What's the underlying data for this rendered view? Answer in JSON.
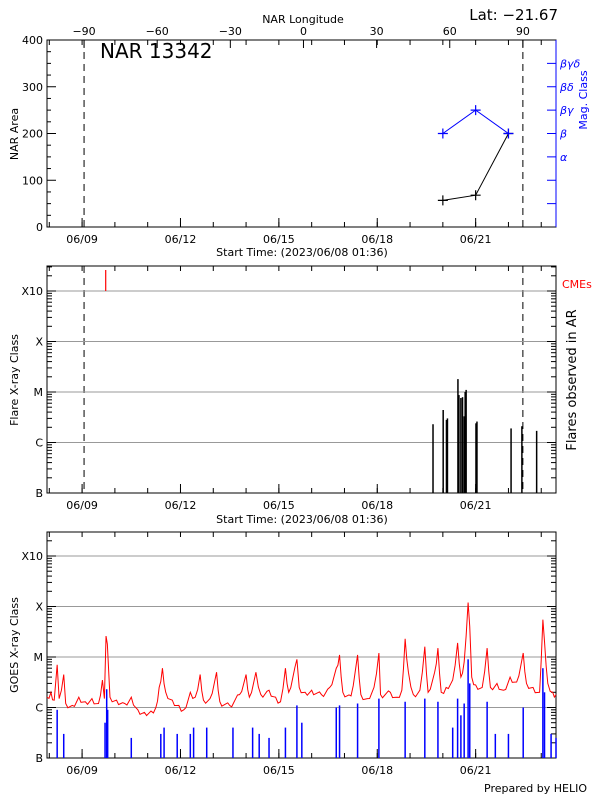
{
  "header": {
    "lat_label": "Lat: −21.67",
    "region_title": "NAR 13342",
    "footer": "Prepared by HELIO"
  },
  "colors": {
    "axis": "#000000",
    "mag_class": "#0000ff",
    "cme": "#ff0000",
    "goes_long": "#ff0000",
    "goes_short": "#0000ff",
    "grid": "#999999"
  },
  "chart_data": [
    {
      "type": "line",
      "panel": "area",
      "xlabel": "Start Time: (2023/06/08 01:36)",
      "ylabel": "NAR Area",
      "top_axis_label": "NAR Longitude",
      "right_axis_label": "Mag. Class",
      "x_ticks": [
        "06/09",
        "06/12",
        "06/15",
        "06/18",
        "06/21"
      ],
      "x_tick_days": [
        9,
        12,
        15,
        18,
        21
      ],
      "x_range_days_of_june": [
        7.93,
        23.45
      ],
      "ylim": [
        0,
        400
      ],
      "y_ticks": [
        0,
        100,
        200,
        300,
        400
      ],
      "longitude_ticks": [
        -90,
        -60,
        -30,
        0,
        30,
        60,
        90
      ],
      "limb_longitudes": [
        -90,
        90
      ],
      "mag_class_ticks": [
        {
          "label": "α",
          "level": 150
        },
        {
          "label": "β",
          "level": 200
        },
        {
          "label": "βγ",
          "level": 250
        },
        {
          "label": "βδ",
          "level": 300
        },
        {
          "label": "βγδ",
          "level": 350
        }
      ],
      "series": [
        {
          "points": [
            [
              20.0,
              57
            ],
            [
              21.0,
              68
            ],
            [
              22.0,
              200
            ]
          ]
        },
        {
          "points": [
            [
              20.0,
              "β"
            ],
            [
              21.0,
              "βγ"
            ],
            [
              22.0,
              "β"
            ]
          ]
        }
      ]
    },
    {
      "type": "bar",
      "panel": "flares",
      "xlabel": "Start Time: (2023/06/08 01:36)",
      "ylabel": "Flare X-ray Class",
      "right_label": "Flares observed in AR",
      "cme_label": "CMEs",
      "y_scale": "log",
      "y_ticks": [
        {
          "label": "B",
          "flux": 1e-07
        },
        {
          "label": "C",
          "flux": 1e-06
        },
        {
          "label": "M",
          "flux": 1e-05
        },
        {
          "label": "X",
          "flux": 0.0001
        },
        {
          "label": "X10",
          "flux": 0.001
        }
      ],
      "x_ticks": [
        "06/09",
        "06/12",
        "06/15",
        "06/18",
        "06/21"
      ],
      "limb_days": [
        9.06,
        22.44
      ],
      "cmes": [
        9.72
      ],
      "flares": [
        [
          19.7,
          2.3e-06
        ],
        [
          20.01,
          4.4e-06
        ],
        [
          20.11,
          2.8e-06
        ],
        [
          20.14,
          3e-06
        ],
        [
          20.46,
          1.8e-05
        ],
        [
          20.49,
          8.7e-06
        ],
        [
          20.55,
          7.6e-06
        ],
        [
          20.6,
          7.9e-06
        ],
        [
          20.65,
          3.3e-06
        ],
        [
          20.68,
          1e-05
        ],
        [
          20.71,
          1.1e-05
        ],
        [
          21.01,
          2.4e-06
        ],
        [
          21.04,
          2.6e-06
        ],
        [
          22.08,
          1.9e-06
        ],
        [
          22.41,
          2.1e-06
        ],
        [
          22.86,
          1.7e-06
        ]
      ]
    },
    {
      "type": "line",
      "panel": "goes",
      "ylabel": "GOES X-ray Class",
      "y_scale": "log",
      "y_ticks": [
        {
          "label": "B",
          "flux": 1e-07
        },
        {
          "label": "C",
          "flux": 1e-06
        },
        {
          "label": "M",
          "flux": 1e-05
        },
        {
          "label": "X",
          "flux": 0.0001
        },
        {
          "label": "X10",
          "flux": 0.001
        }
      ],
      "x_ticks": [
        "06/09",
        "06/12",
        "06/15",
        "06/18",
        "06/21"
      ],
      "series": [
        {
          "channel": "long",
          "points": [
            [
              7.93,
              1.6e-06
            ],
            [
              8.05,
              2e-06
            ],
            [
              8.15,
              1.4e-06
            ],
            [
              8.24,
              7e-06
            ],
            [
              8.3,
              1.5e-06
            ],
            [
              8.44,
              4.5e-06
            ],
            [
              8.5,
              1.2e-06
            ],
            [
              8.7,
              1.1e-06
            ],
            [
              8.9,
              1.6e-06
            ],
            [
              9.1,
              1.3e-06
            ],
            [
              9.3,
              1.5e-06
            ],
            [
              9.5,
              1.2e-06
            ],
            [
              9.62,
              3.5e-06
            ],
            [
              9.68,
              1.5e-06
            ],
            [
              9.73,
              2.6e-05
            ],
            [
              9.77,
              1.8e-05
            ],
            [
              9.85,
              1.6e-06
            ],
            [
              10.05,
              1.4e-06
            ],
            [
              10.3,
              1.2e-06
            ],
            [
              10.5,
              1.6e-06
            ],
            [
              10.7,
              9e-07
            ],
            [
              10.9,
              8e-07
            ],
            [
              11.1,
              8.5e-07
            ],
            [
              11.25,
              1e-06
            ],
            [
              11.35,
              2.5e-06
            ],
            [
              11.45,
              6e-06
            ],
            [
              11.55,
              2e-06
            ],
            [
              11.75,
              1.4e-06
            ],
            [
              11.95,
              1.1e-06
            ],
            [
              12.1,
              9e-07
            ],
            [
              12.3,
              2e-06
            ],
            [
              12.45,
              1.6e-06
            ],
            [
              12.6,
              4.5e-06
            ],
            [
              12.7,
              1.4e-06
            ],
            [
              12.9,
              1.5e-06
            ],
            [
              13.1,
              5e-06
            ],
            [
              13.2,
              1.3e-06
            ],
            [
              13.5,
              1.1e-06
            ],
            [
              13.8,
              1.8e-06
            ],
            [
              14.0,
              4.5e-06
            ],
            [
              14.1,
              1.6e-06
            ],
            [
              14.3,
              5e-06
            ],
            [
              14.45,
              1.8e-06
            ],
            [
              14.7,
              2.2e-06
            ],
            [
              14.9,
              1.6e-06
            ],
            [
              15.05,
              1.3e-06
            ],
            [
              15.2,
              6e-06
            ],
            [
              15.3,
              2e-06
            ],
            [
              15.55,
              9e-06
            ],
            [
              15.62,
              2.5e-06
            ],
            [
              15.8,
              2e-06
            ],
            [
              16.0,
              2.2e-06
            ],
            [
              16.3,
              1.8e-06
            ],
            [
              16.55,
              2.5e-06
            ],
            [
              16.75,
              6e-06
            ],
            [
              16.85,
              1.1e-05
            ],
            [
              16.95,
              2e-06
            ],
            [
              17.2,
              1.7e-06
            ],
            [
              17.4,
              1.1e-05
            ],
            [
              17.5,
              1.8e-06
            ],
            [
              17.7,
              1.5e-06
            ],
            [
              17.9,
              2.5e-06
            ],
            [
              18.05,
              1.2e-05
            ],
            [
              18.1,
              1.8e-06
            ],
            [
              18.4,
              2e-06
            ],
            [
              18.6,
              1.6e-06
            ],
            [
              18.75,
              2.2e-06
            ],
            [
              18.85,
              2.3e-05
            ],
            [
              18.95,
              5e-06
            ],
            [
              19.1,
              1.8e-06
            ],
            [
              19.3,
              2.2e-06
            ],
            [
              19.45,
              1.6e-05
            ],
            [
              19.55,
              2e-06
            ],
            [
              19.75,
              5e-06
            ],
            [
              19.85,
              1.5e-05
            ],
            [
              19.95,
              2e-06
            ],
            [
              20.1,
              2.5e-06
            ],
            [
              20.3,
              3.5e-06
            ],
            [
              20.45,
              1.9e-05
            ],
            [
              20.55,
              4e-06
            ],
            [
              20.65,
              8e-06
            ],
            [
              20.77,
              0.00012
            ],
            [
              20.82,
              4e-05
            ],
            [
              20.88,
              4e-06
            ],
            [
              21.0,
              2.8e-06
            ],
            [
              21.2,
              2.5e-06
            ],
            [
              21.35,
              1.5e-05
            ],
            [
              21.45,
              2.5e-06
            ],
            [
              21.65,
              3e-06
            ],
            [
              21.85,
              2.2e-06
            ],
            [
              22.05,
              4e-06
            ],
            [
              22.25,
              3.2e-06
            ],
            [
              22.45,
              1.2e-05
            ],
            [
              22.55,
              3e-06
            ],
            [
              22.75,
              2.5e-06
            ],
            [
              22.95,
              2e-06
            ],
            [
              23.05,
              5.5e-05
            ],
            [
              23.1,
              2e-05
            ],
            [
              23.2,
              3e-06
            ],
            [
              23.35,
              2e-06
            ],
            [
              23.45,
              1.8e-06
            ]
          ]
        },
        {
          "channel": "short",
          "points": [
            [
              8.24,
              9e-07
            ],
            [
              8.44,
              3e-07
            ],
            [
              9.7,
              5e-07
            ],
            [
              9.75,
              2.3e-06
            ],
            [
              9.78,
              9e-07
            ],
            [
              10.5,
              2.5e-07
            ],
            [
              11.4,
              3e-07
            ],
            [
              11.5,
              4e-07
            ],
            [
              11.9,
              3e-07
            ],
            [
              12.3,
              3e-07
            ],
            [
              12.4,
              4e-07
            ],
            [
              12.8,
              4e-07
            ],
            [
              13.6,
              4e-07
            ],
            [
              14.2,
              4e-07
            ],
            [
              14.4,
              3e-07
            ],
            [
              14.7,
              2.5e-07
            ],
            [
              15.2,
              4e-07
            ],
            [
              15.55,
              1.1e-06
            ],
            [
              15.7,
              5e-07
            ],
            [
              16.75,
              1e-06
            ],
            [
              16.85,
              1.1e-06
            ],
            [
              17.4,
              1.2e-06
            ],
            [
              18.05,
              1.5e-06
            ],
            [
              18.85,
              1.3e-06
            ],
            [
              19.45,
              1.5e-06
            ],
            [
              19.85,
              1.3e-06
            ],
            [
              20.3,
              4e-07
            ],
            [
              20.45,
              1.5e-06
            ],
            [
              20.55,
              7e-07
            ],
            [
              20.65,
              1.2e-06
            ],
            [
              20.77,
              9e-06
            ],
            [
              20.82,
              3e-06
            ],
            [
              21.35,
              1.3e-06
            ],
            [
              21.6,
              3e-07
            ],
            [
              22.0,
              3e-07
            ],
            [
              22.45,
              1e-06
            ],
            [
              23.05,
              6e-06
            ],
            [
              23.1,
              2e-06
            ],
            [
              23.3,
              3e-07
            ],
            [
              23.45,
              2.5e-07
            ]
          ]
        }
      ]
    }
  ]
}
